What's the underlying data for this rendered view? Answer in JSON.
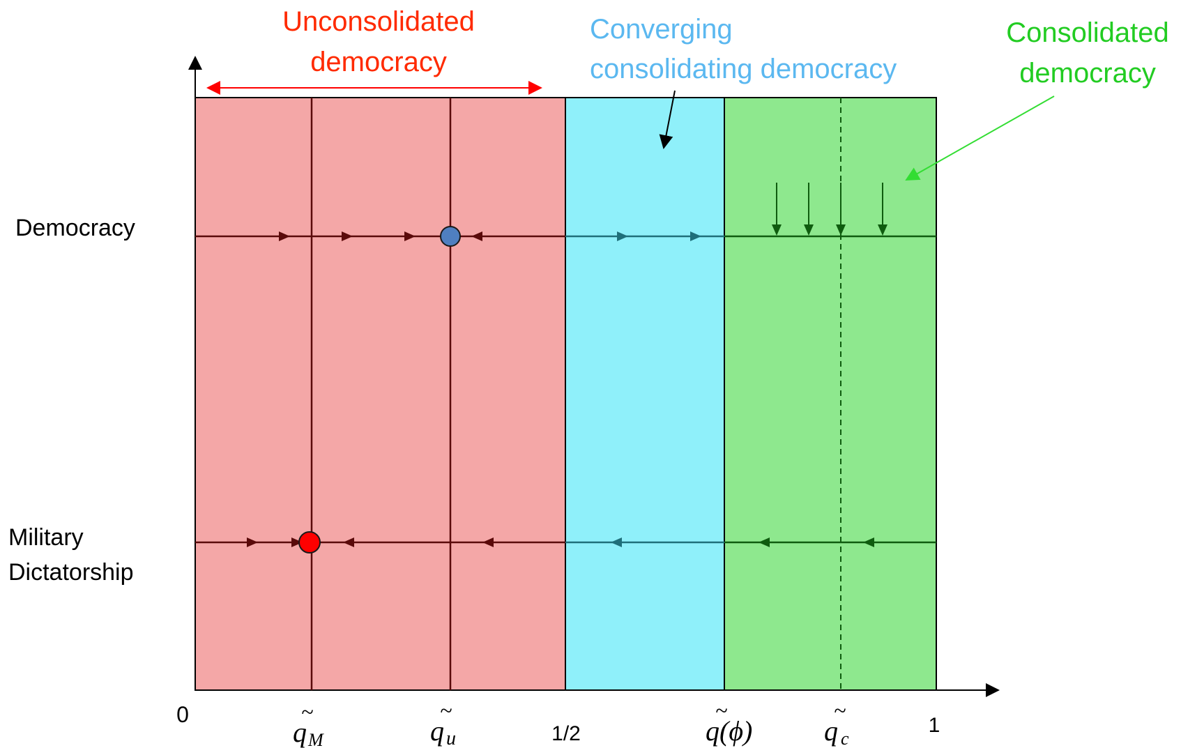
{
  "regions": {
    "unconsolidated": {
      "title_line1": "Unconsolidated",
      "title_line2": "democracy",
      "color": "#f4a7a7",
      "title_color": "#ff2a00"
    },
    "converging": {
      "title_line1": "Converging",
      "title_line2": "consolidating democracy",
      "color": "#8ff0fa",
      "title_color": "#5bb8f0"
    },
    "consolidated": {
      "title_line1": "Consolidated",
      "title_line2": "democracy",
      "color": "#8ee88e",
      "title_color": "#22cc22"
    }
  },
  "states": {
    "democracy": "Democracy",
    "military_line1": "Military",
    "military_line2": "Dictatorship"
  },
  "axis": {
    "origin": "0",
    "half": "1/2",
    "one": "1"
  },
  "q_labels": {
    "q_m_base": "q",
    "q_m_sub": "M",
    "q_u_base": "q",
    "q_u_sub": "u",
    "q_phi": "q(ϕ)",
    "q_c_base": "q",
    "q_c_sub": "c"
  },
  "colors": {
    "dark_red_line": "#5a0a0a",
    "dark_teal_line": "#1f6f7a",
    "dark_green_line": "#0f5c0f",
    "stable_democracy_point": "#4f7fc0",
    "stable_military_point": "#ff0000",
    "red_arrow": "#ff0000",
    "green_pointer": "#33dd33"
  }
}
